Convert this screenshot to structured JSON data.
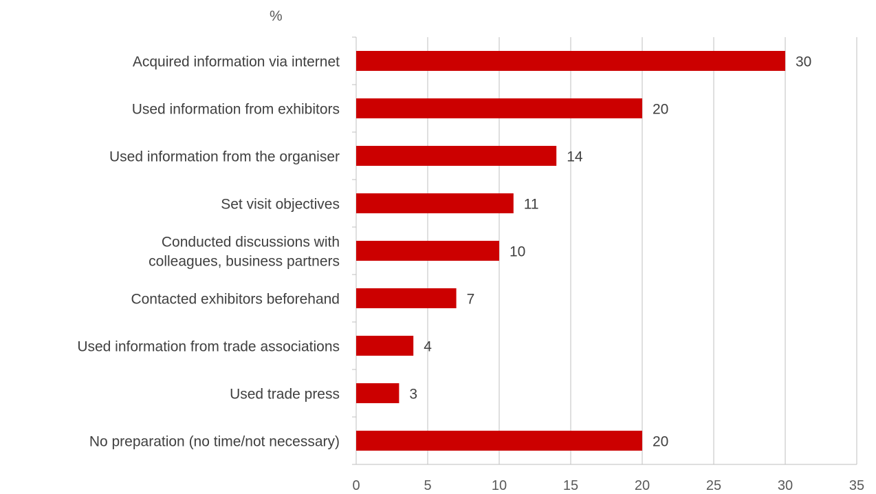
{
  "chart_data": {
    "type": "bar",
    "orientation": "horizontal",
    "unit_label": "%",
    "categories": [
      [
        "Acquired information via internet"
      ],
      [
        "Used information from exhibitors"
      ],
      [
        "Used information from the organiser"
      ],
      [
        "Set visit objectives"
      ],
      [
        "Conducted discussions with",
        "colleagues, business partners"
      ],
      [
        "Contacted exhibitors beforehand"
      ],
      [
        "Used information from trade associations"
      ],
      [
        "Used trade press"
      ],
      [
        "No preparation (no time/not necessary)"
      ]
    ],
    "values": [
      30,
      20,
      14,
      11,
      10,
      7,
      4,
      3,
      20
    ],
    "xlim": [
      0,
      35
    ],
    "xticks": [
      0,
      5,
      10,
      15,
      20,
      25,
      30,
      35
    ],
    "grid": true,
    "bar_color": "#cc0000",
    "gridline_color": "#bfbfbf",
    "text_color": "#404040"
  }
}
